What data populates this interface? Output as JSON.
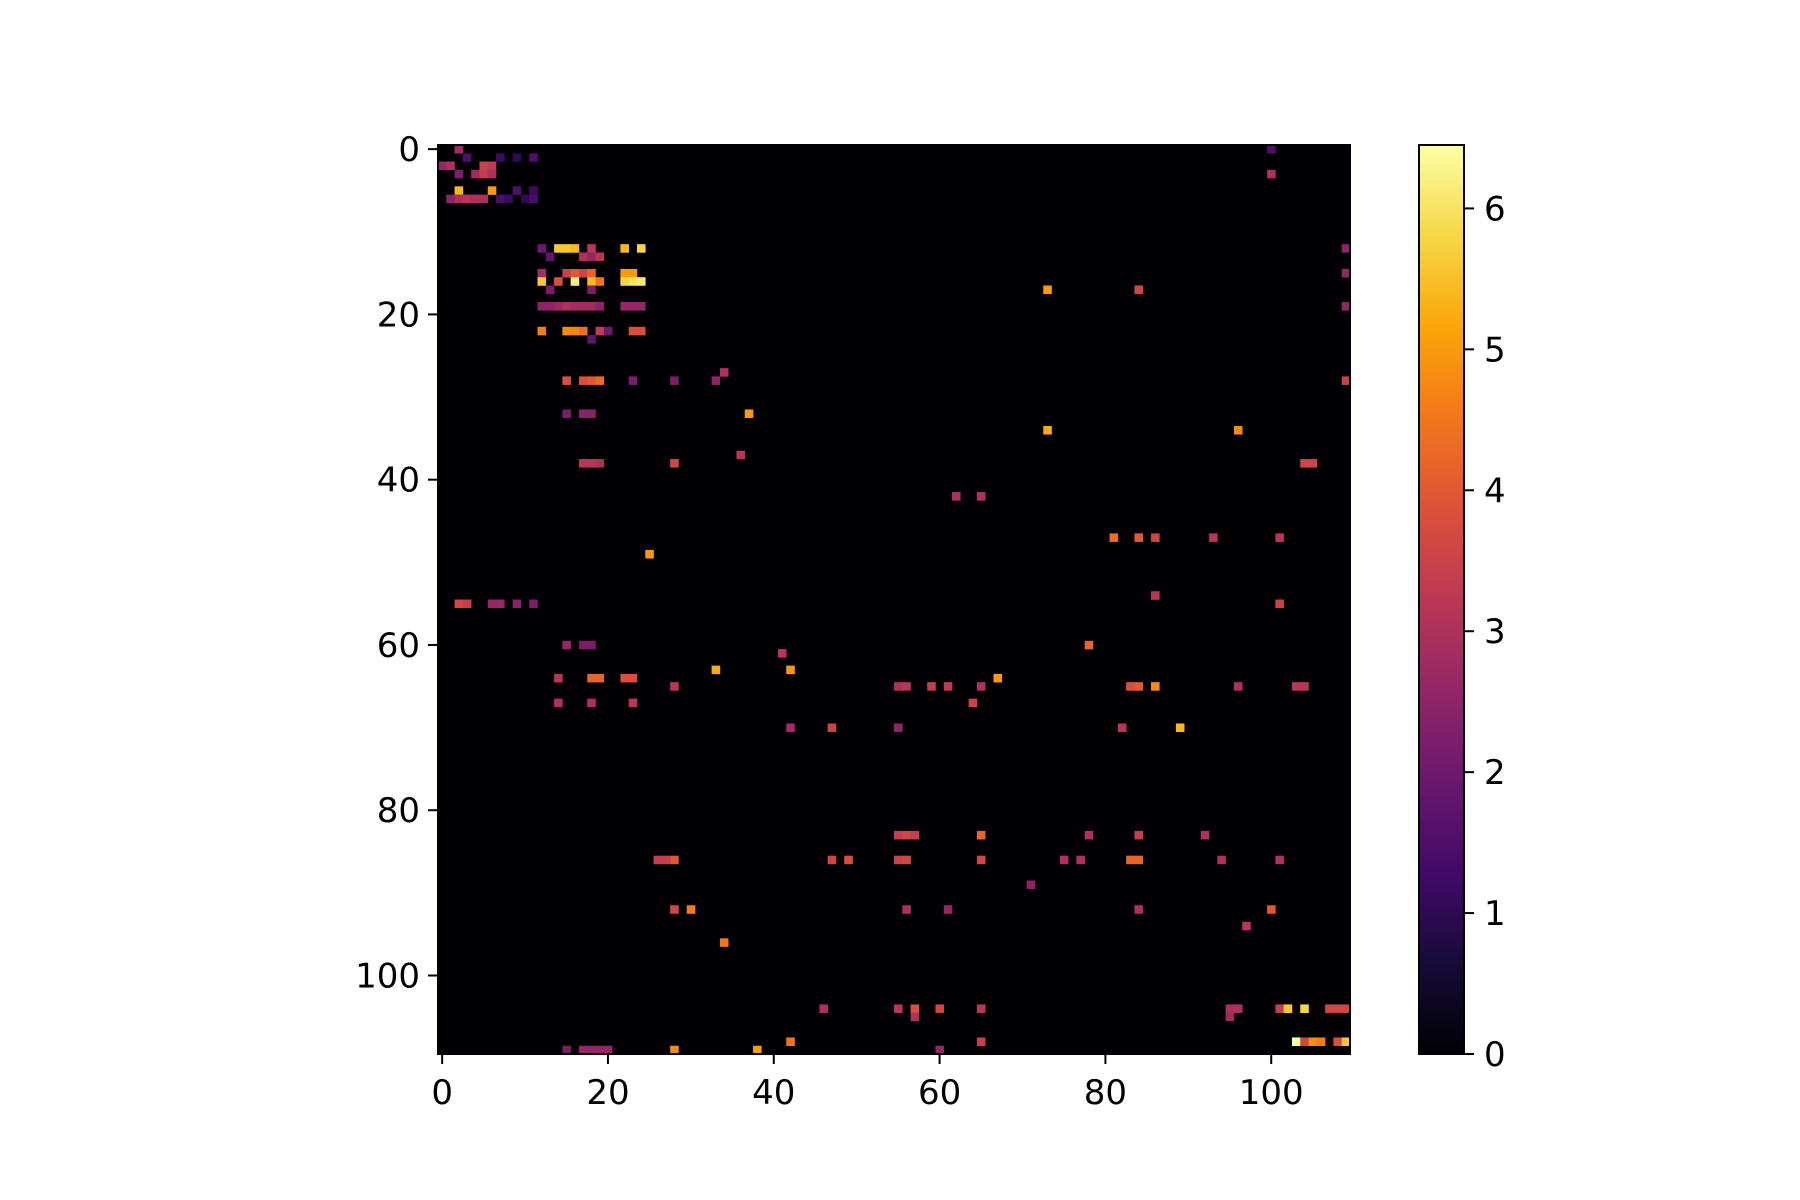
{
  "chart_data": {
    "type": "heatmap",
    "title": "",
    "xlabel": "",
    "ylabel": "",
    "grid": false,
    "colormap": "inferno",
    "rows": 110,
    "cols": 110,
    "xlim": [
      0,
      110
    ],
    "ylim": [
      110,
      0
    ],
    "x_ticks": [
      0,
      20,
      40,
      60,
      80,
      100
    ],
    "y_ticks": [
      0,
      20,
      40,
      60,
      80,
      100
    ],
    "colorbar": {
      "vmin": 0,
      "vmax": 6.45,
      "ticks": [
        0,
        1,
        2,
        3,
        4,
        5,
        6
      ],
      "placement": "right"
    },
    "background_value": 0,
    "cells": [
      [
        2,
        0,
        2.8
      ],
      [
        3,
        1,
        1.5
      ],
      [
        0,
        2,
        2.6
      ],
      [
        1,
        2,
        3.0
      ],
      [
        5,
        2,
        3.5
      ],
      [
        6,
        2,
        3.3
      ],
      [
        7,
        1,
        1.2
      ],
      [
        2,
        3,
        2.2
      ],
      [
        4,
        3,
        2.8
      ],
      [
        5,
        3,
        3.4
      ],
      [
        6,
        3,
        3.0
      ],
      [
        9,
        1,
        1.0
      ],
      [
        11,
        1,
        1.5
      ],
      [
        2,
        5,
        5.4
      ],
      [
        6,
        5,
        5.0
      ],
      [
        9,
        5,
        1.5
      ],
      [
        11,
        5,
        1.2
      ],
      [
        1,
        6,
        2.5
      ],
      [
        2,
        6,
        3.0
      ],
      [
        3,
        6,
        3.2
      ],
      [
        4,
        6,
        3.0
      ],
      [
        5,
        6,
        3.0
      ],
      [
        7,
        6,
        1.5
      ],
      [
        8,
        6,
        1.2
      ],
      [
        10,
        6,
        1.0
      ],
      [
        11,
        6,
        1.4
      ],
      [
        12,
        12,
        2.0
      ],
      [
        14,
        12,
        5.6
      ],
      [
        15,
        12,
        5.6
      ],
      [
        16,
        12,
        5.4
      ],
      [
        18,
        12,
        3.2
      ],
      [
        22,
        12,
        5.4
      ],
      [
        24,
        12,
        5.8
      ],
      [
        13,
        13,
        1.8
      ],
      [
        17,
        13,
        3.0
      ],
      [
        18,
        13,
        2.6
      ],
      [
        19,
        13,
        3.2
      ],
      [
        12,
        15,
        2.8
      ],
      [
        15,
        15,
        3.5
      ],
      [
        16,
        15,
        4.0
      ],
      [
        17,
        15,
        3.6
      ],
      [
        18,
        15,
        4.2
      ],
      [
        22,
        15,
        5.0
      ],
      [
        23,
        15,
        5.0
      ],
      [
        12,
        16,
        5.6
      ],
      [
        14,
        16,
        3.8
      ],
      [
        16,
        16,
        6.2
      ],
      [
        18,
        16,
        5.4
      ],
      [
        19,
        16,
        4.5
      ],
      [
        22,
        16,
        5.8
      ],
      [
        23,
        16,
        6.0
      ],
      [
        24,
        16,
        6.1
      ],
      [
        13,
        17,
        2.2
      ],
      [
        18,
        17,
        2.2
      ],
      [
        12,
        19,
        2.5
      ],
      [
        13,
        19,
        2.5
      ],
      [
        14,
        19,
        2.7
      ],
      [
        15,
        19,
        3.0
      ],
      [
        16,
        19,
        2.8
      ],
      [
        17,
        19,
        2.8
      ],
      [
        18,
        19,
        2.8
      ],
      [
        19,
        19,
        2.5
      ],
      [
        22,
        19,
        2.6
      ],
      [
        23,
        19,
        2.6
      ],
      [
        24,
        19,
        2.6
      ],
      [
        12,
        22,
        4.6
      ],
      [
        15,
        22,
        4.8
      ],
      [
        16,
        22,
        4.7
      ],
      [
        17,
        22,
        4.4
      ],
      [
        19,
        22,
        3.3
      ],
      [
        23,
        22,
        3.8
      ],
      [
        24,
        22,
        3.8
      ],
      [
        18,
        23,
        1.8
      ],
      [
        20,
        22,
        2.0
      ],
      [
        15,
        28,
        3.8
      ],
      [
        17,
        28,
        3.8
      ],
      [
        18,
        28,
        4.0
      ],
      [
        19,
        28,
        4.3
      ],
      [
        23,
        28,
        2.2
      ],
      [
        37,
        32,
        5.0
      ],
      [
        34,
        27,
        3.0
      ],
      [
        33,
        28,
        2.5
      ],
      [
        28,
        28,
        2.2
      ],
      [
        15,
        32,
        2.2
      ],
      [
        17,
        32,
        2.4
      ],
      [
        18,
        32,
        2.4
      ],
      [
        36,
        37,
        3.2
      ],
      [
        17,
        38,
        3.2
      ],
      [
        18,
        38,
        3.2
      ],
      [
        19,
        38,
        3.0
      ],
      [
        28,
        38,
        3.6
      ],
      [
        25,
        49,
        5.0
      ],
      [
        2,
        55,
        3.6
      ],
      [
        3,
        55,
        3.4
      ],
      [
        6,
        55,
        2.6
      ],
      [
        7,
        55,
        2.6
      ],
      [
        9,
        55,
        2.4
      ],
      [
        11,
        55,
        2.2
      ],
      [
        15,
        60,
        2.6
      ],
      [
        17,
        60,
        2.2
      ],
      [
        18,
        60,
        2.2
      ],
      [
        14,
        64,
        3.2
      ],
      [
        18,
        64,
        4.2
      ],
      [
        19,
        64,
        4.2
      ],
      [
        22,
        64,
        3.8
      ],
      [
        23,
        64,
        3.8
      ],
      [
        14,
        67,
        3.0
      ],
      [
        18,
        67,
        3.0
      ],
      [
        23,
        67,
        3.2
      ],
      [
        33,
        63,
        5.2
      ],
      [
        41,
        61,
        3.2
      ],
      [
        42,
        63,
        5.0
      ],
      [
        28,
        65,
        3.2
      ],
      [
        55,
        65,
        3.0
      ],
      [
        56,
        65,
        3.2
      ],
      [
        59,
        65,
        3.4
      ],
      [
        61,
        65,
        3.3
      ],
      [
        65,
        65,
        3.0
      ],
      [
        64,
        67,
        3.5
      ],
      [
        67,
        64,
        5.0
      ],
      [
        47,
        70,
        3.5
      ],
      [
        42,
        70,
        2.8
      ],
      [
        55,
        70,
        2.5
      ],
      [
        82,
        70,
        3.2
      ],
      [
        89,
        70,
        5.4
      ],
      [
        84,
        65,
        4.0
      ],
      [
        83,
        65,
        3.8
      ],
      [
        86,
        65,
        4.8
      ],
      [
        96,
        65,
        3.0
      ],
      [
        103,
        65,
        3.2
      ],
      [
        104,
        65,
        3.2
      ],
      [
        73,
        34,
        5.2
      ],
      [
        96,
        34,
        4.8
      ],
      [
        104,
        38,
        3.6
      ],
      [
        105,
        38,
        3.6
      ],
      [
        109,
        28,
        3.5
      ],
      [
        109,
        15,
        2.6
      ],
      [
        109,
        19,
        2.6
      ],
      [
        109,
        12,
        2.5
      ],
      [
        73,
        17,
        5.0
      ],
      [
        84,
        17,
        3.6
      ],
      [
        65,
        42,
        3.0
      ],
      [
        62,
        42,
        3.0
      ],
      [
        81,
        47,
        4.4
      ],
      [
        84,
        47,
        4.0
      ],
      [
        86,
        47,
        3.6
      ],
      [
        93,
        47,
        3.2
      ],
      [
        101,
        47,
        3.2
      ],
      [
        101,
        55,
        3.5
      ],
      [
        100,
        3,
        3.0
      ],
      [
        100,
        0,
        1.5
      ],
      [
        86,
        54,
        3.2
      ],
      [
        78,
        60,
        4.2
      ],
      [
        55,
        83,
        3.4
      ],
      [
        56,
        83,
        3.6
      ],
      [
        57,
        83,
        3.4
      ],
      [
        65,
        83,
        4.2
      ],
      [
        78,
        83,
        3.0
      ],
      [
        84,
        83,
        3.4
      ],
      [
        92,
        83,
        3.0
      ],
      [
        55,
        86,
        3.5
      ],
      [
        56,
        86,
        3.6
      ],
      [
        65,
        86,
        3.6
      ],
      [
        75,
        86,
        3.0
      ],
      [
        77,
        86,
        3.0
      ],
      [
        83,
        86,
        4.2
      ],
      [
        84,
        86,
        4.2
      ],
      [
        94,
        86,
        3.0
      ],
      [
        101,
        86,
        3.0
      ],
      [
        28,
        86,
        4.0
      ],
      [
        26,
        86,
        3.4
      ],
      [
        27,
        86,
        3.4
      ],
      [
        47,
        86,
        3.6
      ],
      [
        49,
        86,
        3.8
      ],
      [
        28,
        92,
        3.6
      ],
      [
        30,
        92,
        4.6
      ],
      [
        56,
        92,
        3.0
      ],
      [
        84,
        92,
        3.0
      ],
      [
        100,
        92,
        4.0
      ],
      [
        97,
        94,
        3.2
      ],
      [
        34,
        96,
        4.5
      ],
      [
        71,
        89,
        2.5
      ],
      [
        61,
        92,
        2.6
      ],
      [
        55,
        104,
        3.2
      ],
      [
        57,
        104,
        3.8
      ],
      [
        60,
        104,
        3.6
      ],
      [
        65,
        104,
        3.2
      ],
      [
        46,
        104,
        3.0
      ],
      [
        95,
        104,
        3.0
      ],
      [
        96,
        104,
        3.0
      ],
      [
        101,
        104,
        3.4
      ],
      [
        102,
        104,
        5.6
      ],
      [
        104,
        104,
        5.8
      ],
      [
        107,
        104,
        3.6
      ],
      [
        108,
        104,
        3.6
      ],
      [
        109,
        104,
        3.6
      ],
      [
        57,
        105,
        3.0
      ],
      [
        95,
        105,
        2.8
      ],
      [
        103,
        108,
        6.45
      ],
      [
        104,
        108,
        3.6
      ],
      [
        105,
        108,
        4.8
      ],
      [
        106,
        108,
        4.6
      ],
      [
        108,
        108,
        3.8
      ],
      [
        109,
        108,
        5.6
      ],
      [
        38,
        109,
        5.0
      ],
      [
        28,
        109,
        4.8
      ],
      [
        42,
        108,
        4.5
      ],
      [
        65,
        108,
        3.4
      ],
      [
        17,
        109,
        2.6
      ],
      [
        18,
        109,
        2.6
      ],
      [
        19,
        109,
        2.6
      ],
      [
        20,
        109,
        2.6
      ],
      [
        15,
        109,
        2.2
      ],
      [
        60,
        109,
        2.6
      ]
    ]
  }
}
